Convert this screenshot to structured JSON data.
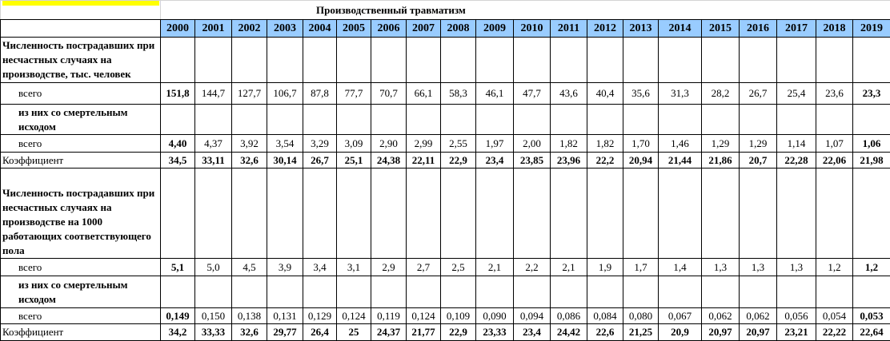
{
  "header": {
    "title": "Производственный травматизм"
  },
  "table": {
    "years": [
      "2000",
      "2001",
      "2002",
      "2003",
      "2004",
      "2005",
      "2006",
      "2007",
      "2008",
      "2009",
      "2010",
      "2011",
      "2012",
      "2013",
      "2014",
      "2015",
      "2016",
      "2017",
      "2018",
      "2019"
    ],
    "rows": [
      {
        "label": "Численность пострадавших при несчастных случаях на производстве, тыс. человек"
      },
      {
        "label": "всего",
        "values": [
          "151,8",
          "144,7",
          "127,7",
          "106,7",
          "87,8",
          "77,7",
          "70,7",
          "66,1",
          "58,3",
          "46,1",
          "47,7",
          "43,6",
          "40,4",
          "35,6",
          "31,3",
          "28,2",
          "26,7",
          "25,4",
          "23,6",
          "23,3"
        ]
      },
      {
        "label": "из них со смертельным исходом"
      },
      {
        "label": "всего",
        "values": [
          "4,40",
          "4,37",
          "3,92",
          "3,54",
          "3,29",
          "3,09",
          "2,90",
          "2,99",
          "2,55",
          "1,97",
          "2,00",
          "1,82",
          "1,82",
          "1,70",
          "1,46",
          "1,29",
          "1,29",
          "1,14",
          "1,07",
          "1,06"
        ]
      },
      {
        "label": "Коэффициент",
        "values": [
          "34,5",
          "33,11",
          "32,6",
          "30,14",
          "26,7",
          "25,1",
          "24,38",
          "22,11",
          "22,9",
          "23,4",
          "23,85",
          "23,96",
          "22,2",
          "20,94",
          "21,44",
          "21,86",
          "20,7",
          "22,28",
          "22,06",
          "21,98"
        ]
      },
      {
        "label": "Численность пострадавших при несчастных случаях на производстве на 1000 работающих соответствующего пола"
      },
      {
        "label": "всего",
        "values": [
          "5,1",
          "5,0",
          "4,5",
          "3,9",
          "3,4",
          "3,1",
          "2,9",
          "2,7",
          "2,5",
          "2,1",
          "2,2",
          "2,1",
          "1,9",
          "1,7",
          "1,4",
          "1,3",
          "1,3",
          "1,3",
          "1,2",
          "1,2"
        ]
      },
      {
        "label": "из них со смертельным исходом"
      },
      {
        "label": "всего",
        "values": [
          "0,149",
          "0,150",
          "0,138",
          "0,131",
          "0,129",
          "0,124",
          "0,119",
          "0,124",
          "0,109",
          "0,090",
          "0,094",
          "0,086",
          "0,084",
          "0,080",
          "0,067",
          "0,062",
          "0,062",
          "0,056",
          "0,054",
          "0,053"
        ]
      },
      {
        "label": "Коэффициент",
        "values": [
          "34,2",
          "33,33",
          "32,6",
          "29,77",
          "26,4",
          "25",
          "24,37",
          "21,77",
          "22,9",
          "23,33",
          "23,4",
          "24,42",
          "22,6",
          "21,25",
          "20,9",
          "20,97",
          "20,97",
          "23,21",
          "22,22",
          "22,64"
        ]
      }
    ]
  }
}
